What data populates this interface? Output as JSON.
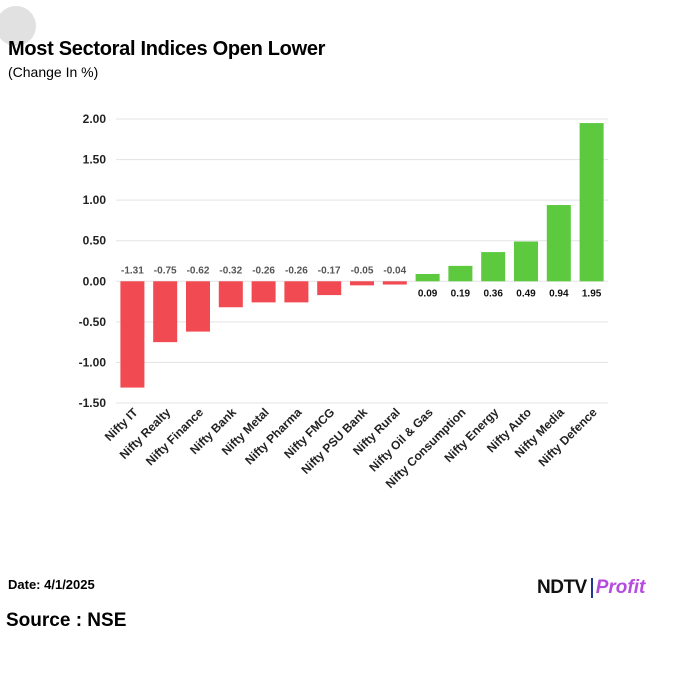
{
  "header": {
    "title": "Most Sectoral Indices Open Lower",
    "subtitle": "(Change In %)"
  },
  "footer": {
    "date": "Date: 4/1/2025",
    "source": "Source : NSE",
    "logo_left": "NDTV",
    "logo_right": "Profit"
  },
  "colors": {
    "negative": "#f24a52",
    "positive": "#5cc93f",
    "grid": "#e3e3e3",
    "axis_text": "#222222",
    "label_negative": "#555555"
  },
  "chart_data": {
    "type": "bar",
    "title": "Most Sectoral Indices Open Lower",
    "subtitle": "(Change In %)",
    "xlabel": "",
    "ylabel": "",
    "ylim": [
      -1.5,
      2.0
    ],
    "yticks": [
      2.0,
      1.5,
      1.0,
      0.5,
      0.0,
      -0.5,
      -1.0,
      -1.5
    ],
    "ytick_labels": [
      "2.00",
      "1.50",
      "1.00",
      "0.50",
      "0.00",
      "-0.50",
      "-1.00",
      "-1.50"
    ],
    "grid": true,
    "legend": "none",
    "categories": [
      "Nifty IT",
      "Nifty Realty",
      "Nifty Finance",
      "Nifty Bank",
      "Nifty Metal",
      "Nifty Pharma",
      "Nifty FMCG",
      "Nifty PSU Bank",
      "Nifty Rural",
      "Nifty Oil & Gas",
      "Nifty Consumption",
      "Nifty Energy",
      "Nifty Auto",
      "Nifty Media",
      "Nifty Defence"
    ],
    "values": [
      -1.31,
      -0.75,
      -0.62,
      -0.32,
      -0.26,
      -0.26,
      -0.17,
      -0.05,
      -0.04,
      0.09,
      0.19,
      0.36,
      0.49,
      0.94,
      1.95
    ],
    "value_labels": [
      "-1.31",
      "-0.75",
      "-0.62",
      "-0.32",
      "-0.26",
      "-0.26",
      "-0.17",
      "-0.05",
      "-0.04",
      "0.09",
      "0.19",
      "0.36",
      "0.49",
      "0.94",
      "1.95"
    ]
  }
}
